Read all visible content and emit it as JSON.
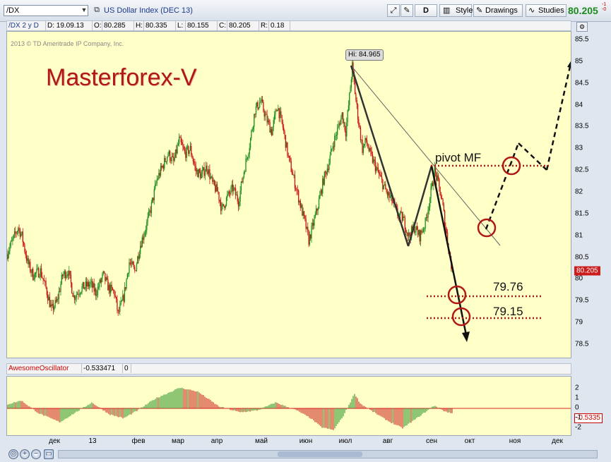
{
  "toolbar": {
    "symbol": "/DX",
    "title": "US Dollar Index (DEC 13)",
    "d_label": "D",
    "style_label": "Style",
    "drawings_label": "Drawings",
    "studies_label": "Studies",
    "last_price": "80.205",
    "change_fragments": [
      "-1",
      "-0"
    ]
  },
  "infobar": {
    "period": "/DX 2 y D",
    "date": "D: 19.09.13",
    "open_label": "O:",
    "open": "80.285",
    "high_label": "H:",
    "high": "80.335",
    "low_label": "L:",
    "low": "80.155",
    "close_label": "C:",
    "close": "80.205",
    "range_label": "R:",
    "range": "0.18"
  },
  "chart": {
    "watermark": "2013 © TD Ameritrade IP Company, Inc.",
    "brand": "Masterforex-V",
    "hi_label": "Hi: 84.965",
    "pivot_label": "pivot MF",
    "level1": "79.76",
    "level2": "79.15",
    "price_tag": "80.205",
    "colors": {
      "up": "#1e8c1e",
      "down": "#c81414",
      "background": "#ffffc8",
      "annotation": "#b01818",
      "levels": "#b01818"
    }
  },
  "oscillator": {
    "name": "AwesomeOscillator",
    "value": "-0.533471",
    "param": "0",
    "axis_value": "-0.5335"
  },
  "chart_data": {
    "type": "candlestick",
    "price_axis_ticks": [
      "85.5",
      "85",
      "84.5",
      "84",
      "83.5",
      "83",
      "82.5",
      "82",
      "81.5",
      "81",
      "80.5",
      "80",
      "79.5",
      "79",
      "78.5"
    ],
    "ylim": [
      78.25,
      85.75
    ],
    "x_tick_labels": [
      "дек",
      "13",
      "фев",
      "мар",
      "апр",
      "май",
      "июн",
      "июл",
      "авг",
      "сен",
      "окт",
      "ноя",
      "дек"
    ],
    "oscillator_axis_ticks": [
      "2",
      "1",
      "0",
      "-1",
      "-2"
    ],
    "hi": 84.965,
    "last": 80.205,
    "support_levels": [
      79.76,
      79.15
    ],
    "pivot_level": 82.65,
    "price_anchors": [
      [
        0,
        80.6
      ],
      [
        6,
        80.9
      ],
      [
        12,
        81.2
      ],
      [
        16,
        81.0
      ],
      [
        22,
        80.4
      ],
      [
        28,
        80.1
      ],
      [
        36,
        80.2
      ],
      [
        42,
        79.8
      ],
      [
        48,
        79.3
      ],
      [
        54,
        79.5
      ],
      [
        60,
        80.1
      ],
      [
        66,
        80.2
      ],
      [
        72,
        79.6
      ],
      [
        80,
        79.8
      ],
      [
        90,
        79.9
      ],
      [
        96,
        79.7
      ],
      [
        104,
        80.1
      ],
      [
        110,
        79.8
      ],
      [
        116,
        79.7
      ],
      [
        120,
        79.2
      ],
      [
        126,
        79.6
      ],
      [
        132,
        80.4
      ],
      [
        138,
        80.2
      ],
      [
        144,
        80.8
      ],
      [
        150,
        81.2
      ],
      [
        156,
        81.7
      ],
      [
        162,
        82.3
      ],
      [
        168,
        82.6
      ],
      [
        174,
        82.9
      ],
      [
        180,
        82.7
      ],
      [
        186,
        83.2
      ],
      [
        192,
        82.9
      ],
      [
        198,
        83.0
      ],
      [
        204,
        82.5
      ],
      [
        210,
        82.4
      ],
      [
        216,
        82.6
      ],
      [
        222,
        82.2
      ],
      [
        228,
        82.0
      ],
      [
        232,
        81.6
      ],
      [
        238,
        81.9
      ],
      [
        244,
        82.1
      ],
      [
        250,
        81.8
      ],
      [
        256,
        82.5
      ],
      [
        262,
        83.1
      ],
      [
        268,
        83.9
      ],
      [
        274,
        84.1
      ],
      [
        280,
        83.7
      ],
      [
        286,
        83.4
      ],
      [
        292,
        84.0
      ],
      [
        298,
        83.5
      ],
      [
        304,
        82.8
      ],
      [
        310,
        82.3
      ],
      [
        316,
        81.8
      ],
      [
        322,
        81.3
      ],
      [
        326,
        80.9
      ],
      [
        330,
        81.2
      ],
      [
        336,
        81.7
      ],
      [
        342,
        82.3
      ],
      [
        348,
        82.7
      ],
      [
        352,
        83.1
      ],
      [
        358,
        83.5
      ],
      [
        362,
        83.8
      ],
      [
        366,
        83.4
      ],
      [
        370,
        84.2
      ],
      [
        373,
        84.9
      ],
      [
        376,
        84.3
      ],
      [
        380,
        83.6
      ],
      [
        384,
        83.0
      ],
      [
        388,
        83.2
      ],
      [
        392,
        82.9
      ],
      [
        398,
        82.6
      ],
      [
        404,
        82.3
      ],
      [
        410,
        82.0
      ],
      [
        416,
        81.8
      ],
      [
        422,
        81.5
      ],
      [
        428,
        81.4
      ],
      [
        434,
        81.0
      ],
      [
        440,
        81.2
      ],
      [
        446,
        81.0
      ],
      [
        452,
        81.3
      ],
      [
        458,
        82.0
      ],
      [
        462,
        82.5
      ],
      [
        466,
        82.2
      ],
      [
        470,
        81.8
      ],
      [
        474,
        81.2
      ],
      [
        478,
        80.6
      ],
      [
        481,
        80.2
      ]
    ],
    "oscillator_shape": [
      [
        0,
        0.4
      ],
      [
        20,
        0.8
      ],
      [
        45,
        -0.5
      ],
      [
        75,
        -1.4
      ],
      [
        95,
        -0.5
      ],
      [
        120,
        0.6
      ],
      [
        145,
        -0.6
      ],
      [
        165,
        -1.0
      ],
      [
        185,
        -0.2
      ],
      [
        210,
        1.0
      ],
      [
        245,
        2.1
      ],
      [
        270,
        1.7
      ],
      [
        300,
        0.2
      ],
      [
        330,
        -0.4
      ],
      [
        355,
        -0.2
      ],
      [
        380,
        0.6
      ],
      [
        410,
        -0.2
      ],
      [
        430,
        -1.0
      ],
      [
        445,
        -1.9
      ],
      [
        462,
        -2.2
      ],
      [
        475,
        -0.9
      ],
      [
        492,
        1.5
      ],
      [
        500,
        0.5
      ],
      [
        515,
        -0.2
      ],
      [
        540,
        -1.3
      ],
      [
        560,
        -2.0
      ],
      [
        580,
        -1.0
      ],
      [
        605,
        0.3
      ],
      [
        620,
        -0.3
      ],
      [
        630,
        -0.5
      ]
    ]
  }
}
